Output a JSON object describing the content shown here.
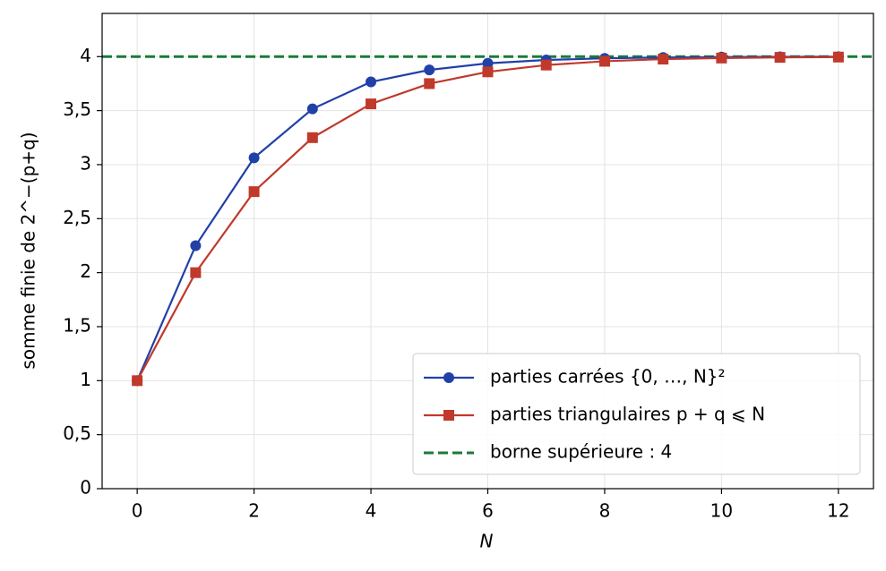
{
  "chart_data": {
    "type": "line",
    "x_label": "N",
    "y_label": "somme finie de 2^−(p+q)",
    "x": [
      0,
      1,
      2,
      3,
      4,
      5,
      6,
      7,
      8,
      9,
      10,
      11,
      12
    ],
    "series": [
      {
        "name": "parties carrées {0, …, N}²",
        "color": "#2140a8",
        "marker": "circle",
        "values": [
          1,
          2.25,
          3.0625,
          3.516,
          3.766,
          3.877,
          3.938,
          3.969,
          3.984,
          3.992,
          3.996,
          3.998,
          3.999
        ]
      },
      {
        "name": "parties triangulaires p + q ⩽ N",
        "color": "#c0392b",
        "marker": "square",
        "values": [
          1,
          2,
          2.75,
          3.25,
          3.5625,
          3.75,
          3.859,
          3.922,
          3.957,
          3.977,
          3.987,
          3.993,
          3.996
        ]
      }
    ],
    "hline": {
      "name": "borne supérieure : 4",
      "value": 4,
      "color": "#1b7a3b"
    },
    "xlim": [
      -0.6,
      12.6
    ],
    "ylim": [
      0,
      4.4
    ],
    "xticks": [
      0,
      2,
      4,
      6,
      8,
      10,
      12
    ],
    "yticks": [
      0,
      {
        "value": 0.5,
        "label": "0,5"
      },
      1,
      {
        "value": 1.5,
        "label": "1,5"
      },
      2,
      {
        "value": 2.5,
        "label": "2,5"
      },
      3,
      {
        "value": 3.5,
        "label": "3,5"
      },
      4
    ],
    "grid": true,
    "legend": "lower right"
  }
}
